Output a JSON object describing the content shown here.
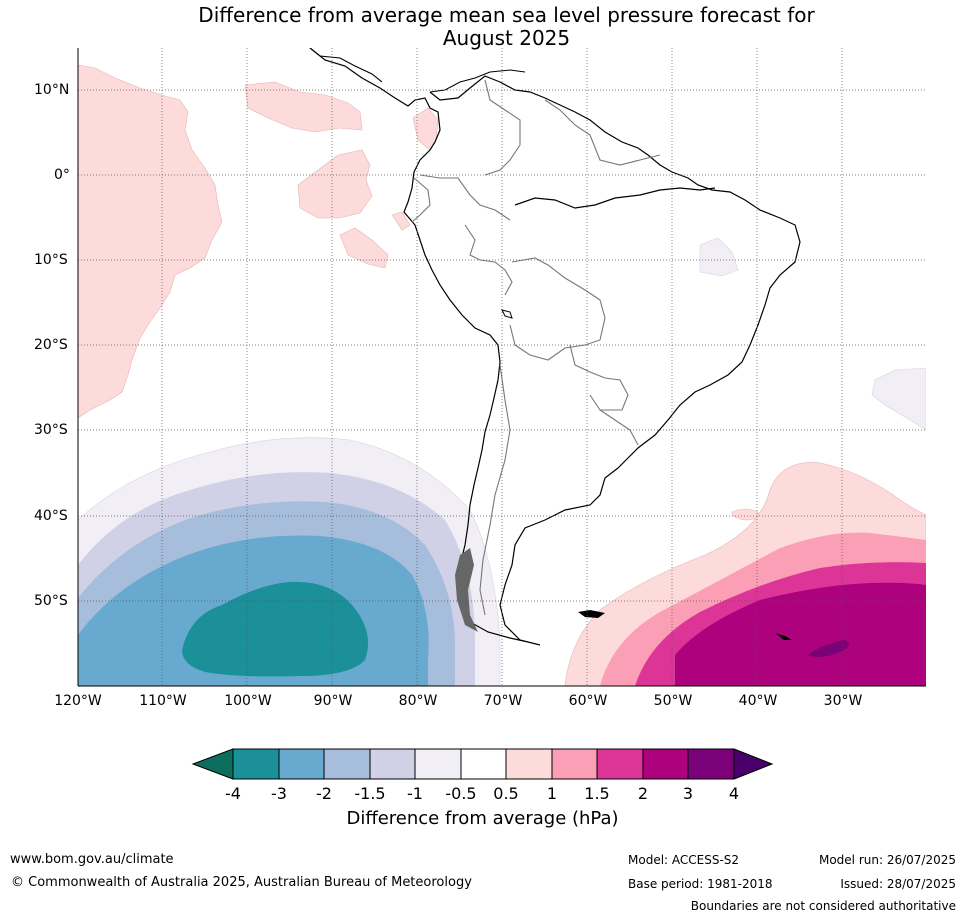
{
  "title_line1": "Difference from average mean sea level pressure forecast for",
  "title_line2": "August 2025",
  "lat_labels": [
    "10°N",
    "0°",
    "10°S",
    "20°S",
    "30°S",
    "40°S",
    "50°S"
  ],
  "lon_labels": [
    "120°W",
    "110°W",
    "100°W",
    "90°W",
    "80°W",
    "70°W",
    "60°W",
    "50°W",
    "40°W",
    "30°W"
  ],
  "colorbar": {
    "title": "Difference from average (hPa)",
    "ticks": [
      "-4",
      "-3",
      "-2",
      "-1.5",
      "-1",
      "-0.5",
      "0.5",
      "1",
      "1.5",
      "2",
      "3",
      "4"
    ],
    "colors": [
      "#0d6e5e",
      "#1c9099",
      "#67a9cf",
      "#a6bddb",
      "#d0d1e6",
      "#f1eef6",
      "#ffffff",
      "#fddbdb",
      "#fa9fb5",
      "#dd3497",
      "#ae017e",
      "#7a0177",
      "#49006a"
    ]
  },
  "footer": {
    "website": "www.bom.gov.au/climate",
    "copyright": "© Commonwealth of Australia 2025, Australian Bureau of Meteorology",
    "model": "Model: ACCESS-S2",
    "base_period": "Base period: 1981-2018",
    "model_run": "Model run: 26/07/2025",
    "issued": "Issued: 28/07/2025",
    "disclaimer": "Boundaries are not considered authoritative"
  }
}
